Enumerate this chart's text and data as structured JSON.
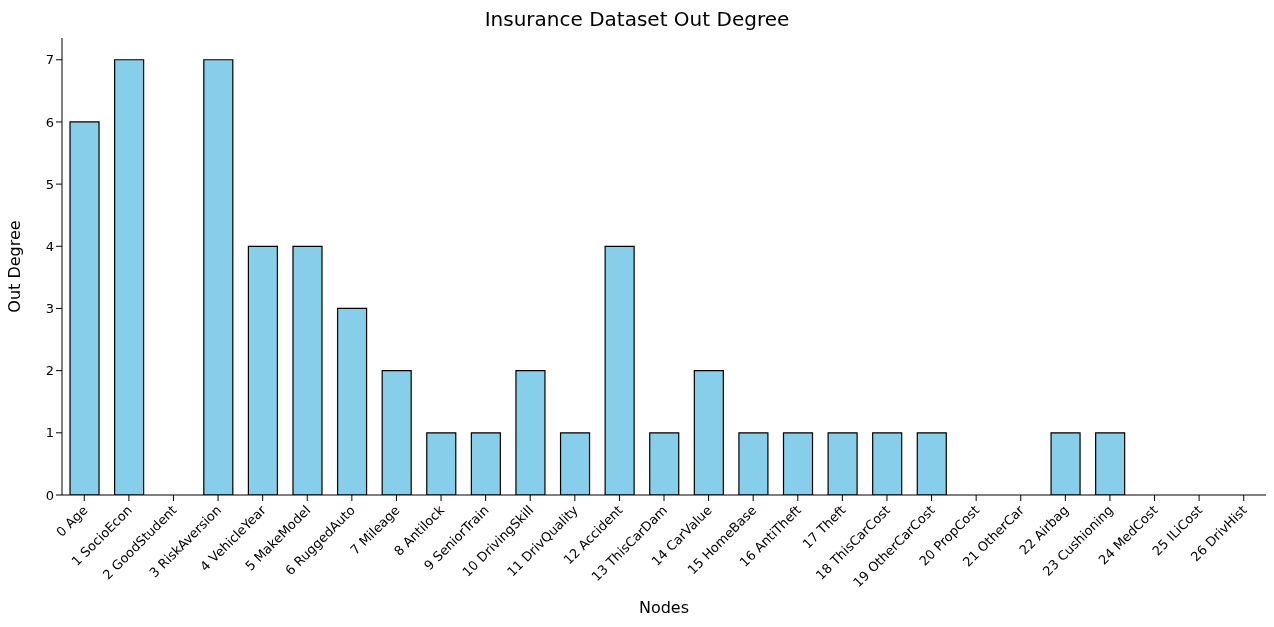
{
  "chart_data": {
    "type": "bar",
    "title": "Insurance Dataset Out Degree",
    "xlabel": "Nodes",
    "ylabel": "Out Degree",
    "categories": [
      "0 Age",
      "1 SocioEcon",
      "2 GoodStudent",
      "3 RiskAversion",
      "4 VehicleYear",
      "5 MakeModel",
      "6 RuggedAuto",
      "7 Mileage",
      "8 Antilock",
      "9 SeniorTrain",
      "10 DrivingSkill",
      "11 DrivQuality",
      "12 Accident",
      "13 ThisCarDam",
      "14 CarValue",
      "15 HomeBase",
      "16 AntiTheft",
      "17 Theft",
      "18 ThisCarCost",
      "19 OtherCarCost",
      "20 PropCost",
      "21 OtherCar",
      "22 Airbag",
      "23 Cushioning",
      "24 MedCost",
      "25 ILiCost",
      "26 DrivHist"
    ],
    "values": [
      6,
      7,
      0,
      7,
      4,
      4,
      3,
      2,
      1,
      1,
      2,
      1,
      4,
      1,
      2,
      1,
      1,
      1,
      1,
      1,
      0,
      0,
      1,
      1,
      0,
      0,
      0
    ],
    "color": "#87ceeb",
    "ylim": [
      0,
      7.35
    ],
    "yticks": [
      0,
      1,
      2,
      3,
      4,
      5,
      6,
      7
    ]
  }
}
